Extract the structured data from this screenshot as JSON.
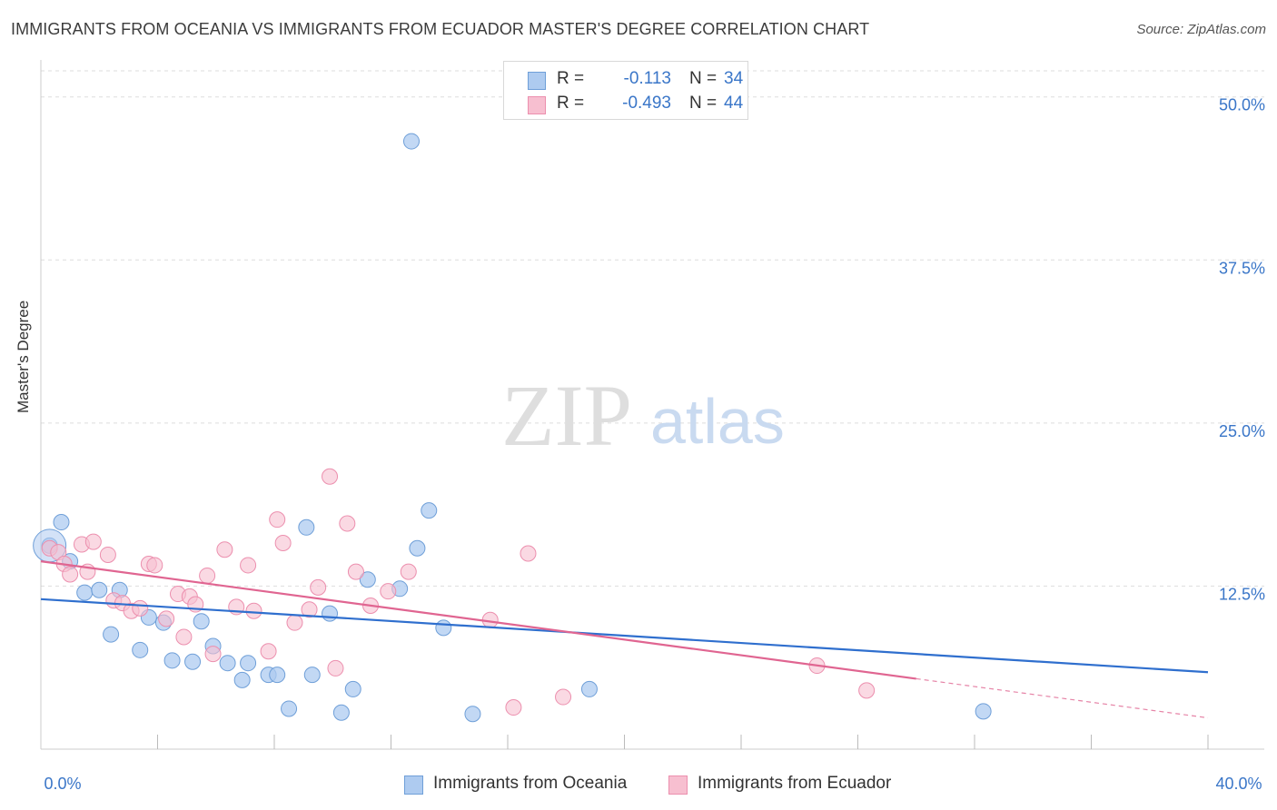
{
  "title": "IMMIGRANTS FROM OCEANIA VS IMMIGRANTS FROM ECUADOR MASTER'S DEGREE CORRELATION CHART",
  "source": "Source: ZipAtlas.com",
  "watermark": {
    "zip": "ZIP",
    "atlas": "atlas"
  },
  "legend_top": [
    {
      "r_label": "R =",
      "r_value": "-0.113",
      "n_label": "N =",
      "n_value": "34"
    },
    {
      "r_label": "R =",
      "r_value": "-0.493",
      "n_label": "N =",
      "n_value": "44"
    }
  ],
  "legend_bottom": [
    "Immigrants from Oceania",
    "Immigrants from Ecuador"
  ],
  "colors": {
    "oceania_fill": "#aecbf0",
    "oceania_stroke": "#6f9fd8",
    "oceania_line": "#2f6fce",
    "ecuador_fill": "#f7bfd0",
    "ecuador_stroke": "#ec8fae",
    "ecuador_line": "#e06591",
    "tick_label": "#3a76c8",
    "grid": "#dddddd"
  },
  "chart_data": {
    "type": "scatter",
    "title": "IMMIGRANTS FROM OCEANIA VS IMMIGRANTS FROM ECUADOR MASTER'S DEGREE CORRELATION CHART",
    "xlabel": "",
    "ylabel": "Master's Degree",
    "xlim": [
      0,
      40
    ],
    "ylim": [
      0,
      52
    ],
    "x_tick_labels": [
      "0.0%",
      "40.0%"
    ],
    "y_ticks": [
      12.5,
      25.0,
      37.5,
      50.0
    ],
    "y_tick_labels": [
      "12.5%",
      "25.0%",
      "37.5%",
      "50.0%"
    ],
    "grid": true,
    "series": [
      {
        "name": "Immigrants from Oceania",
        "points": [
          [
            0.3,
            15.6
          ],
          [
            0.7,
            17.4
          ],
          [
            1.0,
            14.4
          ],
          [
            1.5,
            12.0
          ],
          [
            2.0,
            12.2
          ],
          [
            2.4,
            8.8
          ],
          [
            2.7,
            12.2
          ],
          [
            3.4,
            7.6
          ],
          [
            3.7,
            10.1
          ],
          [
            4.2,
            9.7
          ],
          [
            4.5,
            6.8
          ],
          [
            5.2,
            6.7
          ],
          [
            5.5,
            9.8
          ],
          [
            5.9,
            7.9
          ],
          [
            6.4,
            6.6
          ],
          [
            6.9,
            5.3
          ],
          [
            7.1,
            6.6
          ],
          [
            7.8,
            5.7
          ],
          [
            8.1,
            5.7
          ],
          [
            8.5,
            3.1
          ],
          [
            9.1,
            17.0
          ],
          [
            9.3,
            5.7
          ],
          [
            9.9,
            10.4
          ],
          [
            10.3,
            2.8
          ],
          [
            10.7,
            4.6
          ],
          [
            11.2,
            13.0
          ],
          [
            12.3,
            12.3
          ],
          [
            12.7,
            46.6
          ],
          [
            12.9,
            15.4
          ],
          [
            13.3,
            18.3
          ],
          [
            13.8,
            9.3
          ],
          [
            14.8,
            2.7
          ],
          [
            18.8,
            4.6
          ],
          [
            32.3,
            2.9
          ]
        ],
        "trend": {
          "x": [
            0,
            40
          ],
          "y": [
            11.5,
            5.9
          ]
        }
      },
      {
        "name": "Immigrants from Ecuador",
        "points": [
          [
            0.3,
            15.4
          ],
          [
            0.6,
            15.1
          ],
          [
            0.8,
            14.2
          ],
          [
            1.0,
            13.4
          ],
          [
            1.4,
            15.7
          ],
          [
            1.6,
            13.6
          ],
          [
            1.8,
            15.9
          ],
          [
            2.3,
            14.9
          ],
          [
            2.5,
            11.4
          ],
          [
            2.8,
            11.2
          ],
          [
            3.1,
            10.6
          ],
          [
            3.4,
            10.8
          ],
          [
            3.7,
            14.2
          ],
          [
            3.9,
            14.1
          ],
          [
            4.3,
            10.0
          ],
          [
            4.7,
            11.9
          ],
          [
            4.9,
            8.6
          ],
          [
            5.1,
            11.7
          ],
          [
            5.3,
            11.1
          ],
          [
            5.7,
            13.3
          ],
          [
            5.9,
            7.3
          ],
          [
            6.3,
            15.3
          ],
          [
            6.7,
            10.9
          ],
          [
            7.1,
            14.1
          ],
          [
            7.3,
            10.6
          ],
          [
            7.8,
            7.5
          ],
          [
            8.1,
            17.6
          ],
          [
            8.3,
            15.8
          ],
          [
            8.7,
            9.7
          ],
          [
            9.2,
            10.7
          ],
          [
            9.5,
            12.4
          ],
          [
            9.9,
            20.9
          ],
          [
            10.1,
            6.2
          ],
          [
            10.5,
            17.3
          ],
          [
            10.8,
            13.6
          ],
          [
            11.3,
            11.0
          ],
          [
            11.9,
            12.1
          ],
          [
            12.6,
            13.6
          ],
          [
            15.4,
            9.9
          ],
          [
            16.2,
            3.2
          ],
          [
            16.7,
            15.0
          ],
          [
            17.9,
            4.0
          ],
          [
            26.6,
            6.4
          ],
          [
            28.3,
            4.5
          ]
        ],
        "trend": {
          "x": [
            0,
            30
          ],
          "y": [
            14.4,
            5.4
          ]
        },
        "trend_dashed": {
          "x": [
            30,
            40
          ],
          "y": [
            5.4,
            2.4
          ]
        }
      }
    ]
  }
}
